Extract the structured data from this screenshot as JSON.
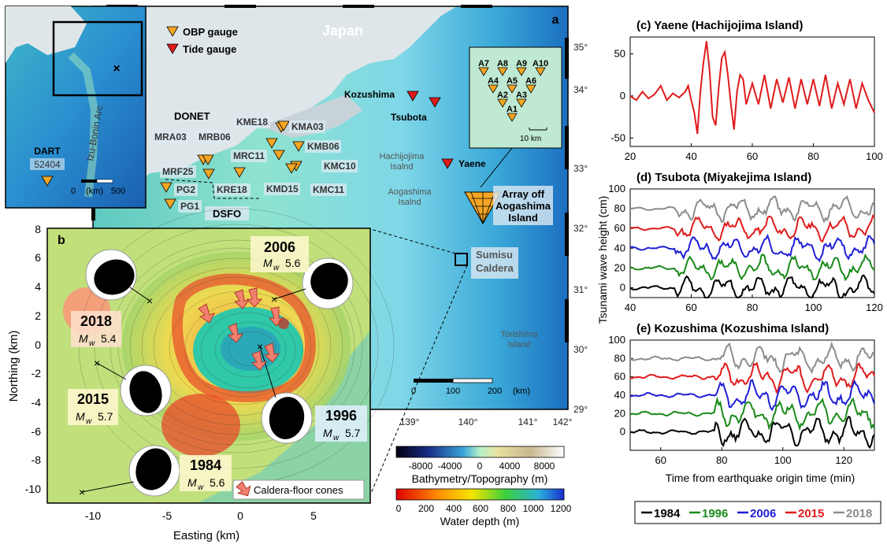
{
  "map_a": {
    "panel": "a",
    "country": "Japan",
    "legend": {
      "obp": "OBP gauge",
      "tide": "Tide gauge"
    },
    "inset": {
      "arc": "Izu-Bonin Arc",
      "dart_label": "DART",
      "dart_id": "52404",
      "scale_0": "0",
      "scale_unit": "(km)",
      "scale_500": "500"
    },
    "lat_ticks": [
      "35°",
      "34°",
      "33°",
      "32°",
      "31°",
      "30°",
      "29°"
    ],
    "lon_ticks": [
      "139°",
      "140°",
      "141°",
      "142°"
    ],
    "scale": {
      "a": "0",
      "b": "100",
      "c": "200",
      "unit": "(km)"
    },
    "tide_gauges": [
      "Kozushima",
      "Tsubota",
      "Yaene"
    ],
    "islands": {
      "hachijojima": [
        "Hachijojima",
        "Isalnd"
      ],
      "aogashima": [
        "Aogashima",
        "Isalnd"
      ],
      "torishima": [
        "Torishima",
        "Island"
      ]
    },
    "networks": {
      "donet": "DONET",
      "dsfo": "DSFO"
    },
    "stations": [
      "MRA03",
      "MRB06",
      "KME18",
      "KMA03",
      "KMB06",
      "MRC11",
      "MRF25",
      "KRE18",
      "KMD15",
      "KMC10",
      "KMC11",
      "PG2",
      "PG1"
    ],
    "array_stations": [
      "A7",
      "A8",
      "A9",
      "A10",
      "A4",
      "A5",
      "A6",
      "A2",
      "A3",
      "A1"
    ],
    "array_scale": "10 km",
    "array_label": [
      "Array off",
      "Aogashima",
      "Island"
    ],
    "sumisu": [
      "Sumisu",
      "Caldera"
    ]
  },
  "map_b": {
    "panel": "b",
    "y_ticks": [
      "8",
      "6",
      "4",
      "2",
      "0",
      "-2",
      "-4",
      "-6",
      "-8",
      "-10"
    ],
    "x_ticks": [
      "-10",
      "-5",
      "0",
      "5"
    ],
    "xlabel": "Easting (km)",
    "ylabel": "Northing (km)",
    "events": [
      {
        "year": "2006",
        "mw": "5.6"
      },
      {
        "year": "2018",
        "mw": "5.4"
      },
      {
        "year": "2015",
        "mw": "5.7"
      },
      {
        "year": "1996",
        "mw": "5.7"
      },
      {
        "year": "1984",
        "mw": "5.6"
      }
    ],
    "mw_label": "M",
    "mw_sub": "w",
    "cones_label": "Caldera-floor cones"
  },
  "colorbars": {
    "topo": {
      "ticks": [
        "-8000",
        "-4000",
        "0",
        "4000",
        "8000"
      ],
      "label": "Bathymetry/Topography (m)"
    },
    "depth": {
      "ticks": [
        "0",
        "200",
        "400",
        "600",
        "800",
        "1000",
        "1200"
      ],
      "label": "Water depth (m)"
    }
  },
  "colors": {
    "y1984": "#000000",
    "y1996": "#1a8a1a",
    "y2006": "#1f1fd6",
    "y2015": "#e01b1b",
    "y2018": "#8c8c8c",
    "obp": "#f5a623",
    "tide": "#e01b1b"
  },
  "chart_data": [
    {
      "type": "line",
      "title": "(c) Yaene (Hachijojima Island)",
      "xlim": [
        20,
        100
      ],
      "ylim": [
        -60,
        70
      ],
      "x_ticks": [
        20,
        40,
        60,
        80,
        100
      ],
      "y_ticks": [
        50,
        0,
        -50
      ],
      "series": [
        {
          "name": "2015",
          "color": "#e01b1b",
          "x": [
            20,
            22,
            24,
            26,
            28,
            30,
            32,
            34,
            36,
            38,
            39,
            40,
            41,
            42,
            43,
            44,
            45,
            46,
            47,
            48,
            49,
            50,
            51,
            52,
            53,
            54,
            55,
            56,
            57,
            58,
            60,
            62,
            64,
            66,
            68,
            70,
            72,
            74,
            76,
            78,
            80,
            82,
            84,
            86,
            88,
            90,
            92,
            94,
            96,
            98,
            100
          ],
          "y": [
            0,
            -5,
            5,
            -3,
            2,
            12,
            -5,
            3,
            -2,
            5,
            12,
            -5,
            -20,
            -45,
            5,
            40,
            65,
            30,
            -25,
            -35,
            10,
            45,
            52,
            25,
            -10,
            -40,
            5,
            25,
            20,
            -10,
            15,
            -10,
            25,
            -15,
            20,
            -8,
            22,
            -15,
            20,
            -10,
            20,
            -12,
            25,
            -15,
            15,
            -10,
            20,
            -15,
            15,
            -5,
            -20
          ]
        }
      ]
    },
    {
      "type": "line",
      "title": "(d) Tsubota (Miyakejima Island)",
      "xlim": [
        40,
        120
      ],
      "ylim": [
        -10,
        100
      ],
      "x_ticks": [
        40,
        60,
        80,
        100,
        120
      ],
      "y_ticks": [
        100,
        80,
        60,
        40,
        20,
        0
      ],
      "series": [
        {
          "name": "2018",
          "color": "#8c8c8c",
          "offset": 80
        },
        {
          "name": "2015",
          "color": "#e01b1b",
          "offset": 60
        },
        {
          "name": "2006",
          "color": "#1f1fd6",
          "offset": 40
        },
        {
          "name": "1996",
          "color": "#1a8a1a",
          "offset": 20
        },
        {
          "name": "1984",
          "color": "#000000",
          "offset": 0
        }
      ]
    },
    {
      "type": "line",
      "title": "(e) Kozushima (Kozushima Island)",
      "xlim": [
        50,
        130
      ],
      "ylim": [
        -20,
        100
      ],
      "x_ticks": [
        60,
        80,
        100,
        120
      ],
      "y_ticks": [
        100,
        80,
        60,
        40,
        20,
        0
      ],
      "series": [
        {
          "name": "2018",
          "color": "#8c8c8c",
          "offset": 80
        },
        {
          "name": "2015",
          "color": "#e01b1b",
          "offset": 60
        },
        {
          "name": "2006",
          "color": "#1f1fd6",
          "offset": 40
        },
        {
          "name": "1996",
          "color": "#1a8a1a",
          "offset": 20
        },
        {
          "name": "1984",
          "color": "#000000",
          "offset": 0
        }
      ]
    }
  ],
  "shared": {
    "ylabel": "Tsunami wave height (cm)",
    "xlabel": "Time from earthquake origin time (min)"
  },
  "legend": [
    {
      "label": "1984",
      "color": "#000000"
    },
    {
      "label": "1996",
      "color": "#1a8a1a"
    },
    {
      "label": "2006",
      "color": "#1f1fd6"
    },
    {
      "label": "2015",
      "color": "#e01b1b"
    },
    {
      "label": "2018",
      "color": "#8c8c8c"
    }
  ]
}
